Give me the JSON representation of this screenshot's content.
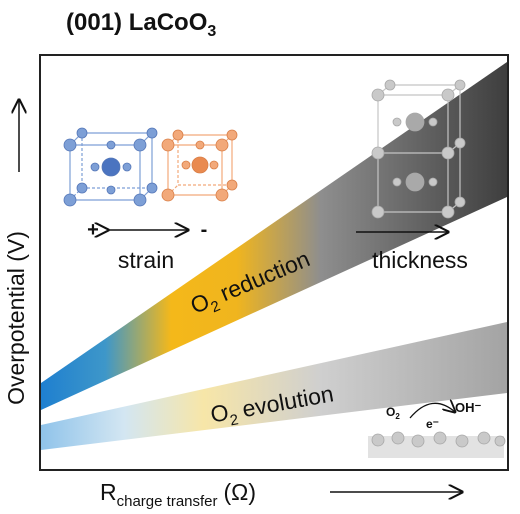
{
  "title": {
    "main": "(001) LaCoO",
    "sub": "3"
  },
  "y_axis_label": "Overpotential (V)",
  "x_axis_label": {
    "main": "R",
    "sub": "charge transfer",
    "unit": "(Ω)"
  },
  "bands": {
    "reduction": {
      "prefix": "O",
      "sub": "2",
      "text": "reduction"
    },
    "evolution": {
      "prefix": "O",
      "sub": "2",
      "text": "evolution"
    }
  },
  "strain": {
    "plus": "+",
    "minus": "-",
    "label": "strain"
  },
  "thickness": "thickness",
  "inset": {
    "reactant": "O",
    "reactant_sub": "2",
    "product": "OH⁻",
    "electron": "e⁻"
  }
}
